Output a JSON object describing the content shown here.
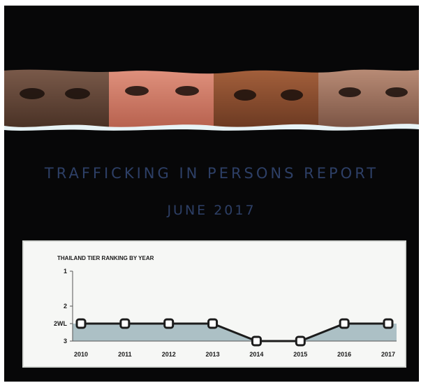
{
  "cover": {
    "title": "TRAFFICKING IN PERSONS REPORT",
    "date": "JUNE 2017"
  },
  "colors": {
    "background": "#070708",
    "title_text": "#2d3f66",
    "plot_fill": "#9fb6bc",
    "line": "#1c1c1c",
    "marker_fill": "#ffffff"
  },
  "chart_data": {
    "type": "line",
    "title": "THAILAND TIER RANKING BY YEAR",
    "categories": [
      "2010",
      "2011",
      "2012",
      "2013",
      "2014",
      "2015",
      "2016",
      "2017"
    ],
    "y_ticks": [
      "1",
      "2",
      "2WL",
      "3"
    ],
    "y_tick_values": [
      1,
      2,
      2.5,
      3
    ],
    "ylim": [
      1,
      3
    ],
    "y_inverted": true,
    "grid": false,
    "legend": "none",
    "series": [
      {
        "values": [
          2.5,
          2.5,
          2.5,
          2.5,
          3,
          3,
          2.5,
          2.5
        ]
      }
    ]
  }
}
